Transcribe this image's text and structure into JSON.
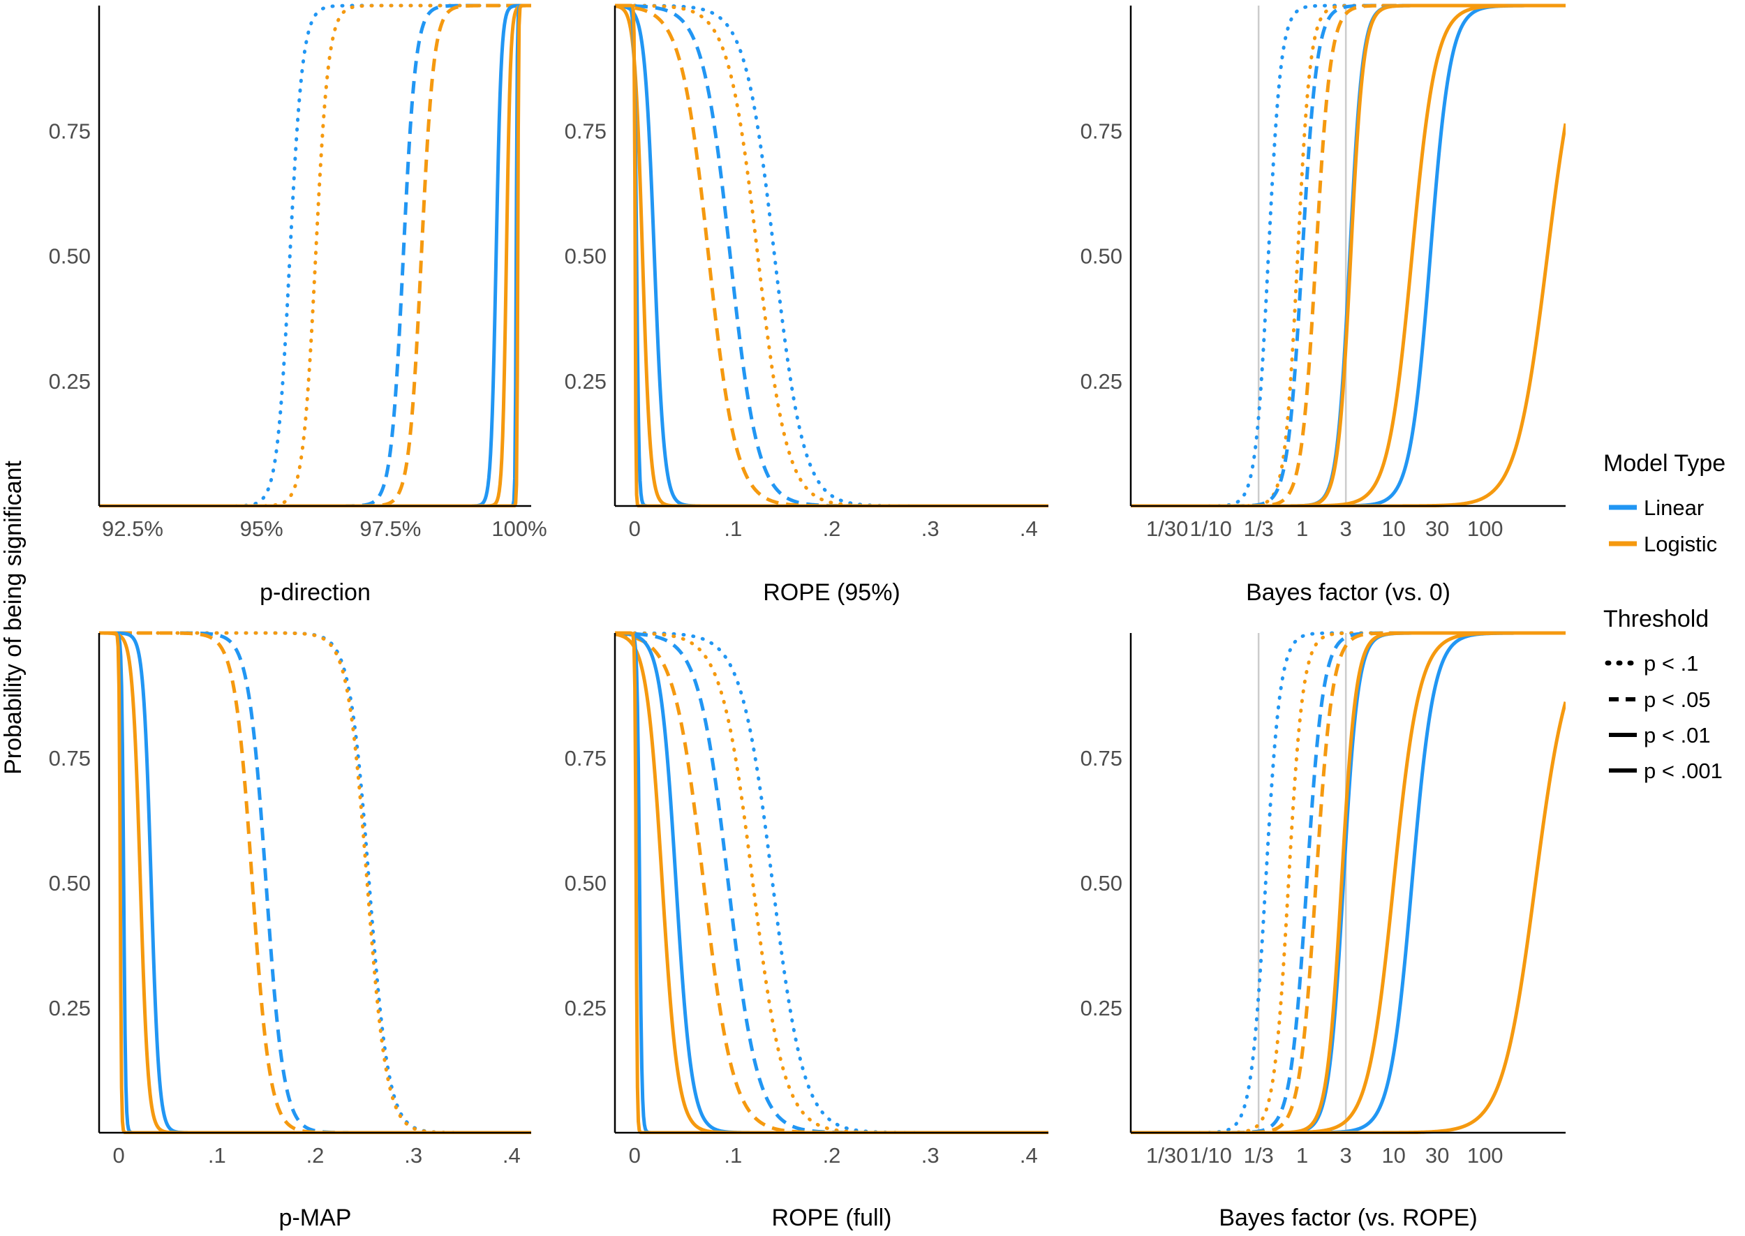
{
  "chart_data": {
    "type": "line",
    "ylabel": "Probability of being significant",
    "colors": {
      "Linear": "#2196f3",
      "Logistic": "#f5990f",
      "axis": "#000000",
      "refline": "#cccccc"
    },
    "legend": {
      "placement": "right",
      "model_title": "Model Type",
      "model_items": [
        {
          "name": "Linear",
          "color": "#2196f3"
        },
        {
          "name": "Logistic",
          "color": "#f5990f"
        }
      ],
      "threshold_title": "Threshold",
      "threshold_items": [
        {
          "name": "p < .1",
          "style": "dotted"
        },
        {
          "name": "p < .05",
          "style": "dashed"
        },
        {
          "name": "p < .01",
          "style": "solid"
        },
        {
          "name": "p < .001",
          "style": "solid"
        }
      ]
    },
    "panels": [
      {
        "title": "p-direction",
        "xscale": "linear",
        "xlim": [
          0.9185,
          1.0023
        ],
        "xticks": [
          0.925,
          0.95,
          0.975,
          1.0
        ],
        "xticklabels": [
          "92.5%",
          "95%",
          "97.5%",
          "100%"
        ],
        "yticks": [
          0.25,
          0.5,
          0.75
        ],
        "yticklabels": [
          "0.25",
          "0.50",
          "0.75"
        ],
        "refs": [],
        "series": [
          {
            "model": "Linear",
            "threshold": "p < .1",
            "mid": 0.9555,
            "scale": 0.00125,
            "dir": 1
          },
          {
            "model": "Logistic",
            "threshold": "p < .1",
            "mid": 0.9605,
            "scale": 0.00125,
            "dir": 1
          },
          {
            "model": "Linear",
            "threshold": "p < .05",
            "mid": 0.9775,
            "scale": 0.0012,
            "dir": 1
          },
          {
            "model": "Logistic",
            "threshold": "p < .05",
            "mid": 0.981,
            "scale": 0.0012,
            "dir": 1
          },
          {
            "model": "Linear",
            "threshold": "p < .01",
            "mid": 0.9955,
            "scale": 0.0005,
            "dir": 1
          },
          {
            "model": "Logistic",
            "threshold": "p < .01",
            "mid": 0.9975,
            "scale": 0.0004,
            "dir": 1
          },
          {
            "model": "Linear",
            "threshold": "p < .001",
            "mid": 0.9994,
            "scale": 0.0001,
            "dir": 1
          },
          {
            "model": "Logistic",
            "threshold": "p < .001",
            "mid": 0.9997,
            "scale": 8e-05,
            "dir": 1
          }
        ]
      },
      {
        "title": "ROPE (95%)",
        "xscale": "linear",
        "xlim": [
          -0.02,
          0.42
        ],
        "xticks": [
          0,
          0.1,
          0.2,
          0.3,
          0.4
        ],
        "xticklabels": [
          "0",
          ".1",
          ".2",
          ".3",
          ".4"
        ],
        "yticks": [
          0.25,
          0.5,
          0.75
        ],
        "yticklabels": [
          "0.25",
          "0.50",
          "0.75"
        ],
        "refs": [],
        "series": [
          {
            "model": "Linear",
            "threshold": "p < .1",
            "mid": 0.142,
            "scale": 0.015,
            "dir": -1
          },
          {
            "model": "Logistic",
            "threshold": "p < .1",
            "mid": 0.125,
            "scale": 0.015,
            "dir": -1
          },
          {
            "model": "Linear",
            "threshold": "p < .05",
            "mid": 0.097,
            "scale": 0.014,
            "dir": -1
          },
          {
            "model": "Logistic",
            "threshold": "p < .05",
            "mid": 0.075,
            "scale": 0.014,
            "dir": -1
          },
          {
            "model": "Linear",
            "threshold": "p < .01",
            "mid": 0.02,
            "scale": 0.005,
            "dir": -1
          },
          {
            "model": "Logistic",
            "threshold": "p < .01",
            "mid": 0.008,
            "scale": 0.004,
            "dir": -1
          },
          {
            "model": "Linear",
            "threshold": "p < .001",
            "mid": 0.002,
            "scale": 0.0012,
            "dir": -1
          },
          {
            "model": "Logistic",
            "threshold": "p < .001",
            "mid": 0.0005,
            "scale": 0.0004,
            "dir": -1
          }
        ]
      },
      {
        "title": "Bayes factor (vs. 0)",
        "xscale": "log",
        "xlim": [
          -1.875,
          2.88
        ],
        "xticks": [
          -1.477,
          -1.0,
          -0.477,
          0,
          0.477,
          1.0,
          1.477,
          2.0
        ],
        "xticklabels": [
          "1/30",
          "1/10",
          "1/3",
          "1",
          "3",
          "10",
          "30",
          "100"
        ],
        "yticks": [
          0.25,
          0.5,
          0.75
        ],
        "yticklabels": [
          "0.25",
          "0.50",
          "0.75"
        ],
        "refs": [
          -0.477,
          0.477
        ],
        "series": [
          {
            "model": "Linear",
            "threshold": "p < .1",
            "mid": -0.37,
            "scale": 0.07,
            "dir": 1
          },
          {
            "model": "Logistic",
            "threshold": "p < .1",
            "mid": -0.05,
            "scale": 0.07,
            "dir": 1
          },
          {
            "model": "Linear",
            "threshold": "p < .05",
            "mid": 0.0,
            "scale": 0.08,
            "dir": 1
          },
          {
            "model": "Logistic",
            "threshold": "p < .05",
            "mid": 0.15,
            "scale": 0.08,
            "dir": 1
          },
          {
            "model": "Linear",
            "threshold": "p < .01",
            "mid": 0.52,
            "scale": 0.07,
            "dir": 1
          },
          {
            "model": "Logistic",
            "threshold": "p < .01",
            "mid": 0.53,
            "scale": 0.07,
            "dir": 1
          },
          {
            "model": "Linear",
            "threshold": "p < .001",
            "mid": 1.4,
            "scale": 0.11,
            "dir": 1
          },
          {
            "model": "Logistic",
            "threshold": "p < .001",
            "mid": 1.2,
            "scale": 0.13,
            "dir": 1
          },
          {
            "model": "Logistic",
            "threshold": "p < .01",
            "mid": 2.68,
            "scale": 0.17,
            "dir": 1
          }
        ]
      },
      {
        "title": "p-MAP",
        "xscale": "linear",
        "xlim": [
          -0.02,
          0.42
        ],
        "xticks": [
          0,
          0.1,
          0.2,
          0.3,
          0.4
        ],
        "xticklabels": [
          "0",
          ".1",
          ".2",
          ".3",
          ".4"
        ],
        "yticks": [
          0.25,
          0.5,
          0.75
        ],
        "yticklabels": [
          "0.25",
          "0.50",
          "0.75"
        ],
        "refs": [],
        "series": [
          {
            "model": "Linear",
            "threshold": "p < .1",
            "mid": 0.255,
            "scale": 0.01,
            "dir": -1
          },
          {
            "model": "Logistic",
            "threshold": "p < .1",
            "mid": 0.253,
            "scale": 0.01,
            "dir": -1
          },
          {
            "model": "Linear",
            "threshold": "p < .05",
            "mid": 0.15,
            "scale": 0.009,
            "dir": -1
          },
          {
            "model": "Logistic",
            "threshold": "p < .05",
            "mid": 0.136,
            "scale": 0.009,
            "dir": -1
          },
          {
            "model": "Linear",
            "threshold": "p < .01",
            "mid": 0.033,
            "scale": 0.004,
            "dir": -1
          },
          {
            "model": "Logistic",
            "threshold": "p < .01",
            "mid": 0.022,
            "scale": 0.004,
            "dir": -1
          },
          {
            "model": "Linear",
            "threshold": "p < .001",
            "mid": 0.005,
            "scale": 0.001,
            "dir": -1
          },
          {
            "model": "Logistic",
            "threshold": "p < .001",
            "mid": 0.0015,
            "scale": 0.0006,
            "dir": -1
          }
        ]
      },
      {
        "title": "ROPE (full)",
        "xscale": "linear",
        "xlim": [
          -0.02,
          0.42
        ],
        "xticks": [
          0,
          0.1,
          0.2,
          0.3,
          0.4
        ],
        "xticklabels": [
          "0",
          ".1",
          ".2",
          ".3",
          ".4"
        ],
        "yticks": [
          0.25,
          0.5,
          0.75
        ],
        "yticklabels": [
          "0.25",
          "0.50",
          "0.75"
        ],
        "refs": [],
        "series": [
          {
            "model": "Linear",
            "threshold": "p < .1",
            "mid": 0.14,
            "scale": 0.016,
            "dir": -1
          },
          {
            "model": "Logistic",
            "threshold": "p < .1",
            "mid": 0.12,
            "scale": 0.016,
            "dir": -1
          },
          {
            "model": "Linear",
            "threshold": "p < .05",
            "mid": 0.095,
            "scale": 0.015,
            "dir": -1
          },
          {
            "model": "Logistic",
            "threshold": "p < .05",
            "mid": 0.07,
            "scale": 0.015,
            "dir": -1
          },
          {
            "model": "Linear",
            "threshold": "p < .01",
            "mid": 0.042,
            "scale": 0.008,
            "dir": -1
          },
          {
            "model": "Logistic",
            "threshold": "p < .01",
            "mid": 0.028,
            "scale": 0.008,
            "dir": -1
          },
          {
            "model": "Linear",
            "threshold": "p < .001",
            "mid": 0.005,
            "scale": 0.0012,
            "dir": -1
          },
          {
            "model": "Logistic",
            "threshold": "p < .001",
            "mid": 0.0015,
            "scale": 0.0006,
            "dir": -1
          }
        ]
      },
      {
        "title": "Bayes factor (vs. ROPE)",
        "xscale": "log",
        "xlim": [
          -1.875,
          2.88
        ],
        "xticks": [
          -1.477,
          -1.0,
          -0.477,
          0,
          0.477,
          1.0,
          1.477,
          2.0
        ],
        "xticklabels": [
          "1/30",
          "1/10",
          "1/3",
          "1",
          "3",
          "10",
          "30",
          "100"
        ],
        "yticks": [
          0.25,
          0.5,
          0.75
        ],
        "yticklabels": [
          "0.25",
          "0.50",
          "0.75"
        ],
        "refs": [
          -0.477,
          0.477
        ],
        "series": [
          {
            "model": "Linear",
            "threshold": "p < .1",
            "mid": -0.4,
            "scale": 0.08,
            "dir": 1
          },
          {
            "model": "Logistic",
            "threshold": "p < .1",
            "mid": -0.15,
            "scale": 0.08,
            "dir": 1
          },
          {
            "model": "Linear",
            "threshold": "p < .05",
            "mid": 0.05,
            "scale": 0.09,
            "dir": 1
          },
          {
            "model": "Logistic",
            "threshold": "p < .05",
            "mid": 0.15,
            "scale": 0.09,
            "dir": 1
          },
          {
            "model": "Linear",
            "threshold": "p < .01",
            "mid": 0.45,
            "scale": 0.08,
            "dir": 1
          },
          {
            "model": "Logistic",
            "threshold": "p < .01",
            "mid": 0.43,
            "scale": 0.08,
            "dir": 1
          },
          {
            "model": "Linear",
            "threshold": "p < .001",
            "mid": 1.2,
            "scale": 0.12,
            "dir": 1
          },
          {
            "model": "Logistic",
            "threshold": "p < .001",
            "mid": 1.0,
            "scale": 0.14,
            "dir": 1
          },
          {
            "model": "Logistic",
            "threshold": "p < .01",
            "mid": 2.55,
            "scale": 0.18,
            "dir": 1
          }
        ]
      }
    ]
  }
}
